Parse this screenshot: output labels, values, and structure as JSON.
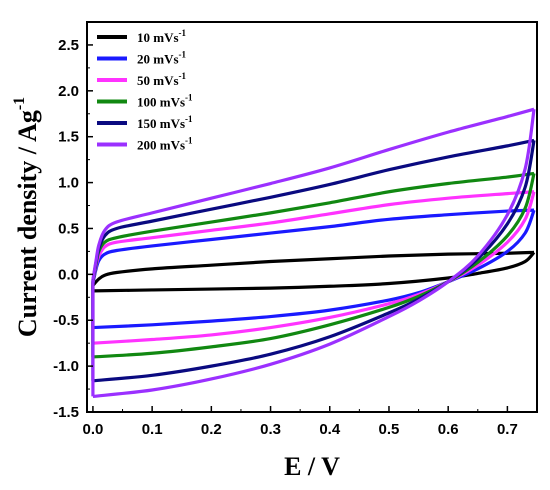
{
  "chart_data": {
    "type": "line",
    "title": "",
    "xlabel": "E / V",
    "ylabel": "Current density / Ag",
    "ylabel_sup": "-1",
    "xlim": [
      -0.01,
      0.75
    ],
    "ylim": [
      -1.5,
      2.75
    ],
    "xticks": [
      0.0,
      0.1,
      0.2,
      0.3,
      0.4,
      0.5,
      0.6,
      0.7
    ],
    "xtick_labels": [
      "0.0",
      "0.1",
      "0.2",
      "0.3",
      "0.4",
      "0.5",
      "0.6",
      "0.7"
    ],
    "yticks": [
      -1.5,
      -1.0,
      -0.5,
      0.0,
      0.5,
      1.0,
      1.5,
      2.0,
      2.5
    ],
    "ytick_labels": [
      "-1.5",
      "-1.0",
      "-0.5",
      "0.0",
      "0.5",
      "1.0",
      "1.5",
      "2.0",
      "2.5"
    ],
    "legend_position": "top-left",
    "series": [
      {
        "name": "10 mVs",
        "name_sup": "-1",
        "color": "#000000",
        "upper": [
          [
            0.0,
            -0.12
          ],
          [
            0.01,
            -0.05
          ],
          [
            0.02,
            -0.01
          ],
          [
            0.04,
            0.02
          ],
          [
            0.1,
            0.06
          ],
          [
            0.2,
            0.1
          ],
          [
            0.3,
            0.14
          ],
          [
            0.4,
            0.17
          ],
          [
            0.5,
            0.2
          ],
          [
            0.6,
            0.22
          ],
          [
            0.7,
            0.23
          ],
          [
            0.745,
            0.24
          ]
        ],
        "lower": [
          [
            0.0,
            -0.18
          ],
          [
            0.1,
            -0.17
          ],
          [
            0.2,
            -0.16
          ],
          [
            0.3,
            -0.15
          ],
          [
            0.4,
            -0.13
          ],
          [
            0.5,
            -0.1
          ],
          [
            0.6,
            -0.04
          ],
          [
            0.65,
            0.01
          ],
          [
            0.7,
            0.07
          ],
          [
            0.73,
            0.14
          ],
          [
            0.745,
            0.24
          ]
        ]
      },
      {
        "name": "20 mVs",
        "name_sup": "-1",
        "color": "#1a1aff",
        "upper": [
          [
            0.0,
            -0.1
          ],
          [
            0.005,
            0.05
          ],
          [
            0.01,
            0.15
          ],
          [
            0.02,
            0.22
          ],
          [
            0.04,
            0.26
          ],
          [
            0.1,
            0.31
          ],
          [
            0.2,
            0.38
          ],
          [
            0.3,
            0.45
          ],
          [
            0.4,
            0.52
          ],
          [
            0.5,
            0.6
          ],
          [
            0.6,
            0.65
          ],
          [
            0.7,
            0.69
          ],
          [
            0.745,
            0.7
          ]
        ],
        "lower": [
          [
            0.0,
            -0.58
          ],
          [
            0.1,
            -0.55
          ],
          [
            0.2,
            -0.51
          ],
          [
            0.3,
            -0.46
          ],
          [
            0.4,
            -0.39
          ],
          [
            0.5,
            -0.28
          ],
          [
            0.55,
            -0.2
          ],
          [
            0.6,
            -0.08
          ],
          [
            0.65,
            0.06
          ],
          [
            0.7,
            0.25
          ],
          [
            0.73,
            0.45
          ],
          [
            0.745,
            0.7
          ]
        ]
      },
      {
        "name": "50 mVs",
        "name_sup": "-1",
        "color": "#ff33ff",
        "upper": [
          [
            0.0,
            -0.09
          ],
          [
            0.005,
            0.08
          ],
          [
            0.01,
            0.2
          ],
          [
            0.02,
            0.3
          ],
          [
            0.04,
            0.35
          ],
          [
            0.1,
            0.4
          ],
          [
            0.2,
            0.48
          ],
          [
            0.3,
            0.56
          ],
          [
            0.4,
            0.66
          ],
          [
            0.5,
            0.76
          ],
          [
            0.6,
            0.83
          ],
          [
            0.7,
            0.88
          ],
          [
            0.745,
            0.9
          ]
        ],
        "lower": [
          [
            0.0,
            -0.75
          ],
          [
            0.1,
            -0.71
          ],
          [
            0.2,
            -0.66
          ],
          [
            0.3,
            -0.58
          ],
          [
            0.4,
            -0.47
          ],
          [
            0.5,
            -0.32
          ],
          [
            0.55,
            -0.22
          ],
          [
            0.6,
            -0.08
          ],
          [
            0.65,
            0.1
          ],
          [
            0.7,
            0.35
          ],
          [
            0.73,
            0.6
          ],
          [
            0.745,
            0.9
          ]
        ]
      },
      {
        "name": "100 mVs",
        "name_sup": "-1",
        "color": "#118811",
        "upper": [
          [
            0.0,
            -0.08
          ],
          [
            0.005,
            0.1
          ],
          [
            0.01,
            0.25
          ],
          [
            0.02,
            0.35
          ],
          [
            0.04,
            0.4
          ],
          [
            0.1,
            0.47
          ],
          [
            0.2,
            0.57
          ],
          [
            0.3,
            0.67
          ],
          [
            0.4,
            0.78
          ],
          [
            0.5,
            0.9
          ],
          [
            0.6,
            0.99
          ],
          [
            0.7,
            1.06
          ],
          [
            0.745,
            1.1
          ]
        ],
        "lower": [
          [
            0.0,
            -0.9
          ],
          [
            0.1,
            -0.86
          ],
          [
            0.2,
            -0.79
          ],
          [
            0.3,
            -0.7
          ],
          [
            0.4,
            -0.55
          ],
          [
            0.5,
            -0.36
          ],
          [
            0.55,
            -0.24
          ],
          [
            0.6,
            -0.08
          ],
          [
            0.65,
            0.13
          ],
          [
            0.7,
            0.42
          ],
          [
            0.73,
            0.72
          ],
          [
            0.745,
            1.1
          ]
        ]
      },
      {
        "name": "150 mVs",
        "name_sup": "-1",
        "color": "#0a0a80",
        "upper": [
          [
            0.0,
            -0.07
          ],
          [
            0.005,
            0.12
          ],
          [
            0.01,
            0.28
          ],
          [
            0.02,
            0.42
          ],
          [
            0.04,
            0.5
          ],
          [
            0.1,
            0.58
          ],
          [
            0.2,
            0.71
          ],
          [
            0.3,
            0.84
          ],
          [
            0.4,
            0.98
          ],
          [
            0.5,
            1.14
          ],
          [
            0.6,
            1.28
          ],
          [
            0.7,
            1.4
          ],
          [
            0.745,
            1.46
          ]
        ],
        "lower": [
          [
            0.0,
            -1.16
          ],
          [
            0.1,
            -1.1
          ],
          [
            0.2,
            -1.0
          ],
          [
            0.3,
            -0.87
          ],
          [
            0.4,
            -0.68
          ],
          [
            0.5,
            -0.42
          ],
          [
            0.55,
            -0.27
          ],
          [
            0.6,
            -0.08
          ],
          [
            0.65,
            0.17
          ],
          [
            0.7,
            0.55
          ],
          [
            0.73,
            0.95
          ],
          [
            0.745,
            1.46
          ]
        ]
      },
      {
        "name": "200 mVs",
        "name_sup": "-1",
        "color": "#9b30ff",
        "upper": [
          [
            0.0,
            -0.06
          ],
          [
            0.005,
            0.14
          ],
          [
            0.01,
            0.32
          ],
          [
            0.02,
            0.48
          ],
          [
            0.04,
            0.57
          ],
          [
            0.1,
            0.67
          ],
          [
            0.2,
            0.83
          ],
          [
            0.3,
            0.99
          ],
          [
            0.4,
            1.16
          ],
          [
            0.5,
            1.36
          ],
          [
            0.6,
            1.55
          ],
          [
            0.7,
            1.72
          ],
          [
            0.745,
            1.8
          ]
        ],
        "lower": [
          [
            0.0,
            -1.33
          ],
          [
            0.1,
            -1.26
          ],
          [
            0.2,
            -1.14
          ],
          [
            0.3,
            -0.98
          ],
          [
            0.4,
            -0.76
          ],
          [
            0.5,
            -0.46
          ],
          [
            0.55,
            -0.29
          ],
          [
            0.6,
            -0.08
          ],
          [
            0.65,
            0.2
          ],
          [
            0.7,
            0.65
          ],
          [
            0.73,
            1.15
          ],
          [
            0.745,
            1.8
          ]
        ]
      }
    ]
  }
}
